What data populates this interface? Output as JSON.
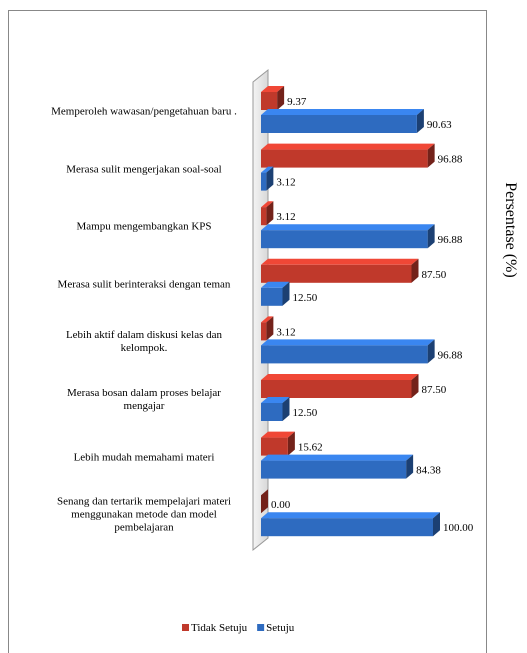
{
  "chart_data": {
    "type": "bar",
    "orientation": "horizontal",
    "xlabel": "Persentase (%)",
    "categories": [
      "Memperoleh wawasan/pengetahuan baru .",
      "Merasa sulit mengerjakan soal-soal",
      "Mampu mengembangkan KPS",
      "Merasa sulit berinteraksi dengan teman",
      "Lebih aktif dalam diskusi kelas dan kelompok.",
      "Merasa bosan dalam proses belajar mengajar",
      "Lebih mudah memahami materi",
      "Senang dan tertarik mempelajari materi  menggunakan metode dan model pembelajaran"
    ],
    "series": [
      {
        "name": "Tidak Setuju",
        "color": "#c0392b",
        "values": [
          9.37,
          96.88,
          3.12,
          87.5,
          3.12,
          87.5,
          15.62,
          0.0
        ],
        "value_labels": [
          "9.37",
          "96.88",
          "3.12",
          "87.50",
          "3.12",
          "87.50",
          "15.62",
          "0.00"
        ]
      },
      {
        "name": "Setuju",
        "color": "#2e6bc0",
        "values": [
          90.63,
          3.12,
          96.88,
          12.5,
          96.88,
          12.5,
          84.38,
          100.0
        ],
        "value_labels": [
          "90.63",
          "3.12",
          "96.88",
          "12.50",
          "96.88",
          "12.50",
          "84.38",
          "100.00"
        ]
      }
    ],
    "xlim": [
      0,
      100
    ],
    "legend": "bottom"
  }
}
